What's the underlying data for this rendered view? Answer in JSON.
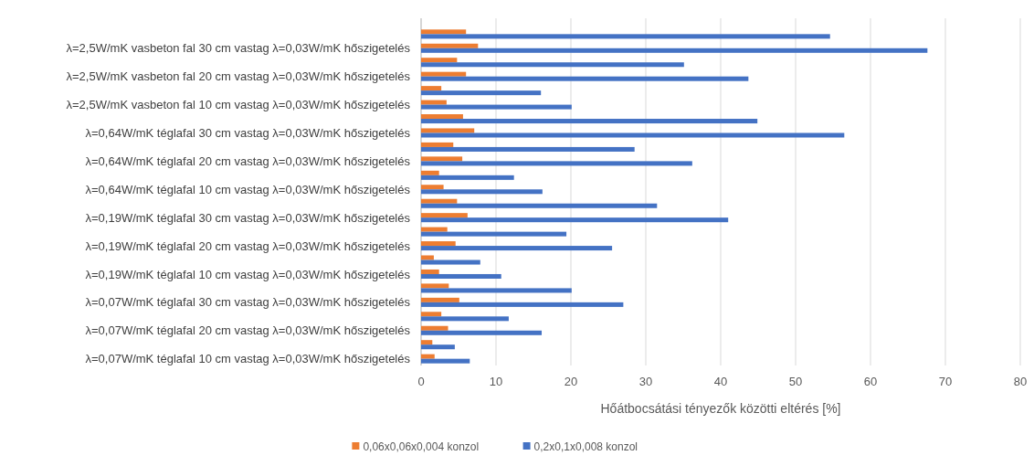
{
  "chart_data": {
    "type": "bar",
    "orientation": "horizontal",
    "xlabel": "Hőátbocsátási tényezők közötti eltérés [%]",
    "categories": [
      null,
      "λ=2,5W/mK vasbeton fal 30 cm vastag λ=0,03W/mK hőszigetelés",
      null,
      "λ=2,5W/mK vasbeton fal 20 cm vastag λ=0,03W/mK hőszigetelés",
      null,
      "λ=2,5W/mK vasbeton fal 10 cm vastag λ=0,03W/mK hőszigetelés",
      null,
      "λ=0,64W/mK téglafal 30 cm vastag λ=0,03W/mK hőszigetelés",
      null,
      "λ=0,64W/mK téglafal 20 cm vastag λ=0,03W/mK hőszigetelés",
      null,
      "λ=0,64W/mK téglafal 10 cm vastag λ=0,03W/mK hőszigetelés",
      null,
      "λ=0,19W/mK téglafal 30 cm vastag λ=0,03W/mK hőszigetelés",
      null,
      "λ=0,19W/mK téglafal 20 cm vastag λ=0,03W/mK hőszigetelés",
      null,
      "λ=0,19W/mK téglafal 10 cm vastag λ=0,03W/mK hőszigetelés",
      null,
      "λ=0,07W/mK téglafal 30 cm vastag λ=0,03W/mK hőszigetelés",
      null,
      "λ=0,07W/mK téglafal 20 cm vastag λ=0,03W/mK hőszigetelés",
      null,
      "λ=0,07W/mK téglafal 10 cm vastag λ=0,03W/mK hőszigetelés"
    ],
    "series": [
      {
        "name": "0,06x0,06x0,004 konzol",
        "color": "#ed7d31",
        "values": [
          6.0,
          7.6,
          4.8,
          6.0,
          2.7,
          3.4,
          5.6,
          7.1,
          4.3,
          5.5,
          2.4,
          3.0,
          4.8,
          6.2,
          3.5,
          4.6,
          1.7,
          2.4,
          3.7,
          5.1,
          2.7,
          3.6,
          1.5,
          1.8
        ]
      },
      {
        "name": "0,2x0,1x0,008 konzol",
        "color": "#4472c4",
        "values": [
          54.6,
          67.6,
          35.1,
          43.7,
          16.0,
          20.1,
          44.9,
          56.5,
          28.5,
          36.2,
          12.4,
          16.2,
          31.5,
          41.0,
          19.4,
          25.5,
          7.9,
          10.7,
          20.1,
          27.0,
          11.7,
          16.1,
          4.5,
          6.5
        ]
      }
    ],
    "xlim": [
      0,
      80
    ],
    "xticks": [
      0,
      10,
      20,
      30,
      40,
      50,
      60,
      70,
      80
    ],
    "grid": "x",
    "legend": "bottom"
  }
}
